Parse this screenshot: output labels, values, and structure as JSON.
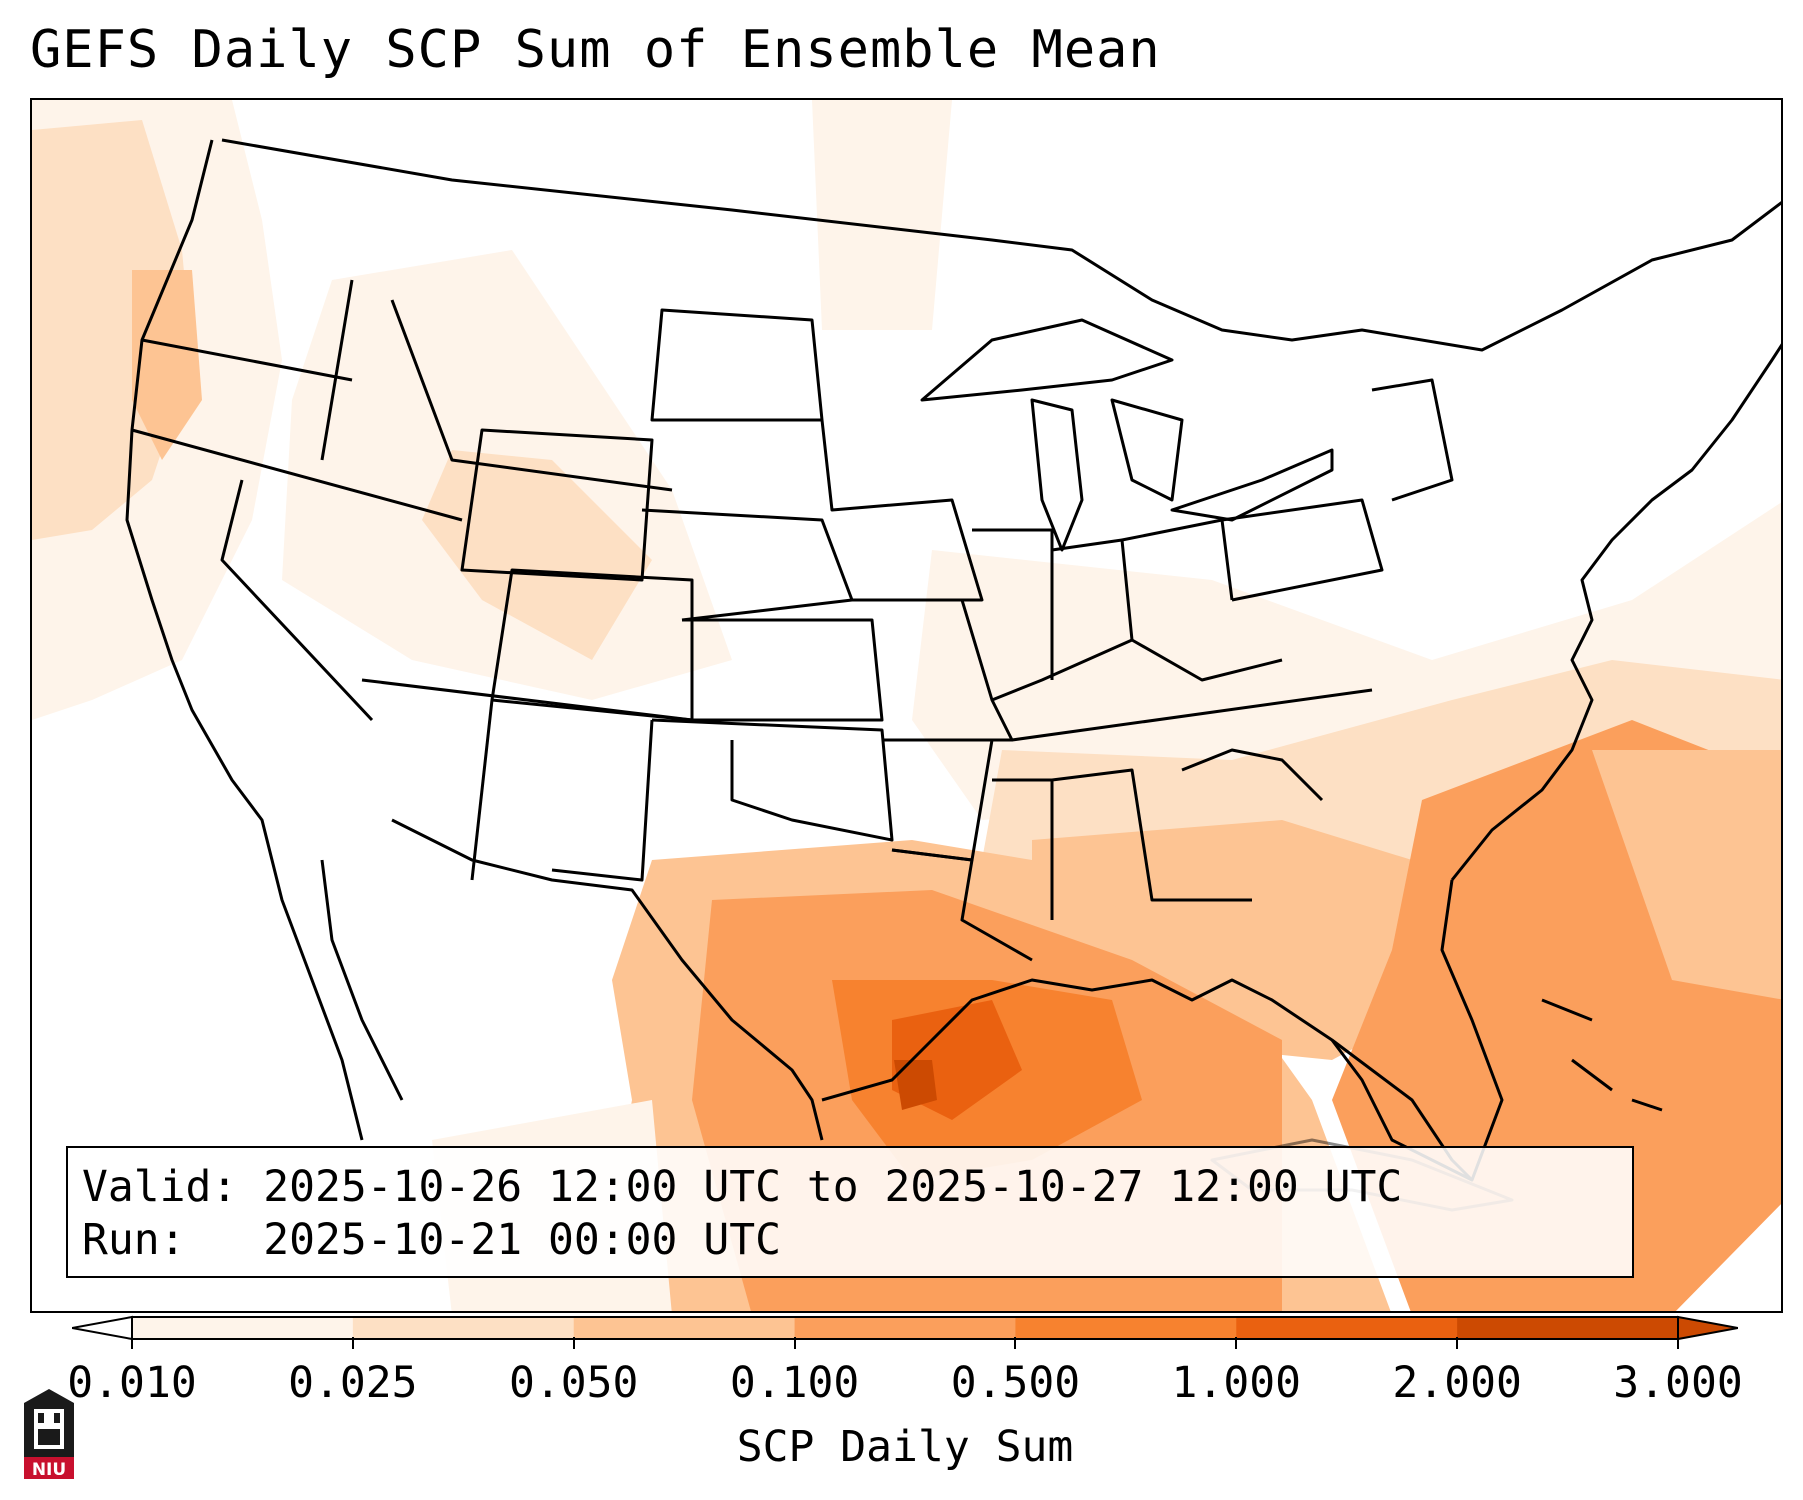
{
  "title": "GEFS Daily SCP Sum of Ensemble Mean",
  "valid_line": "Valid: 2025-10-26 12:00 UTC to 2025-10-27 12:00 UTC",
  "run_line": "Run:   2025-10-21 00:00 UTC",
  "colorbar": {
    "label": "SCP Daily Sum",
    "ticks": [
      "0.010",
      "0.025",
      "0.050",
      "0.100",
      "0.500",
      "1.000",
      "2.000",
      "3.000"
    ],
    "colors": [
      "#fef4ea",
      "#fde0c4",
      "#fdc493",
      "#fb9f5c",
      "#f7822f",
      "#ea6110",
      "#cc4a02"
    ],
    "extend": "both"
  },
  "logo": {
    "text": "NIU"
  }
}
